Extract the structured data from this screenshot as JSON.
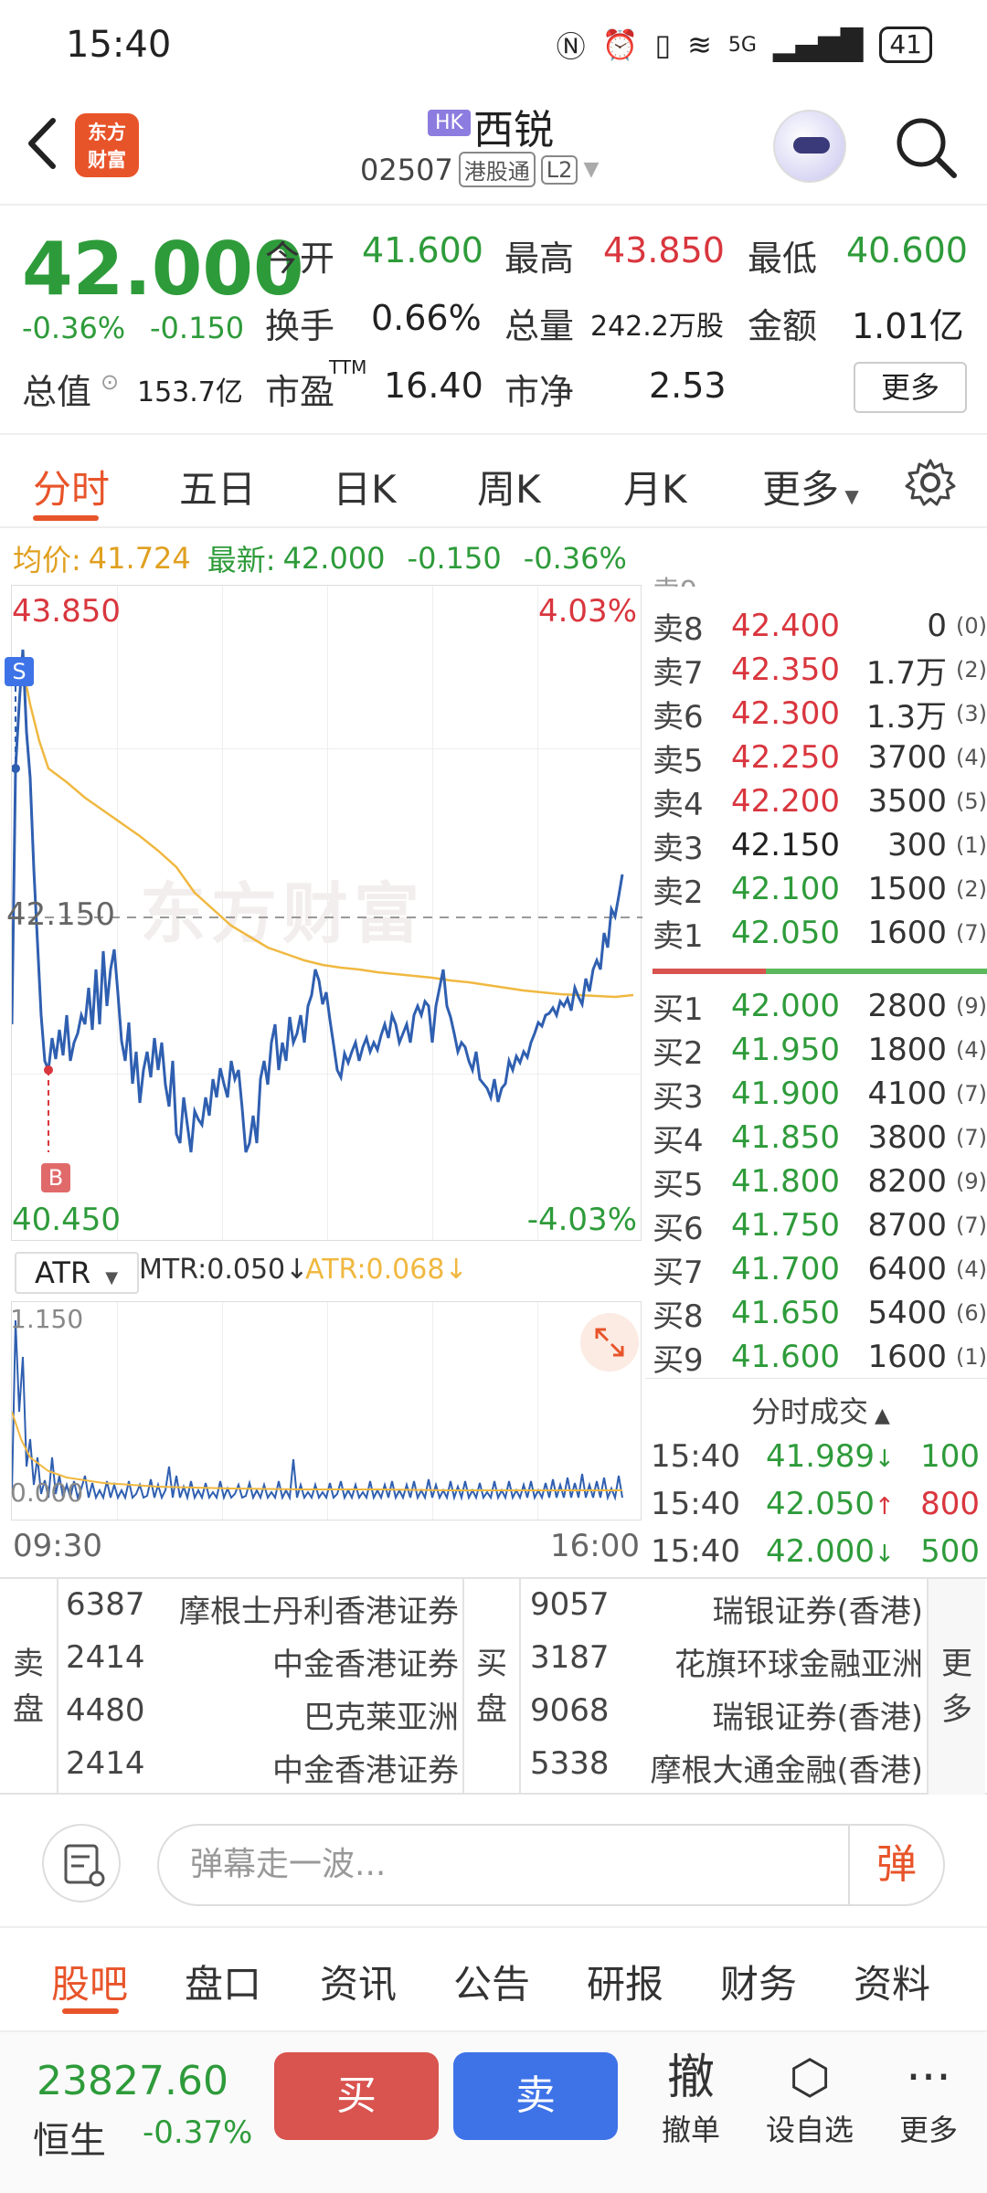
{
  "status_bar": {
    "time": "15:40",
    "battery": "41",
    "signal": "5G"
  },
  "header": {
    "logo_text": "东方\n财富",
    "market_badge": "HK",
    "stock_name": "西锐",
    "stock_code": "02507",
    "connect_tag": "港股通",
    "level_tag": "L2"
  },
  "quote": {
    "price": "42.000",
    "change_pct": "-0.36%",
    "change_amt": "-0.150",
    "open_label": "今开",
    "open": "41.600",
    "high_label": "最高",
    "high": "43.850",
    "low_label": "最低",
    "low": "40.600",
    "turnover_label": "换手",
    "turnover": "0.66%",
    "volume_label": "总量",
    "volume": "242.2万股",
    "amount_label": "金额",
    "amount": "1.01亿",
    "mktcap_label": "总值",
    "mktcap": "153.7亿",
    "pe_label": "市盈",
    "pe_sup": "TTM",
    "pe": "16.40",
    "pb_label": "市净",
    "pb": "2.53",
    "more_label": "更多"
  },
  "tabs": [
    "分时",
    "五日",
    "日K",
    "周K",
    "月K",
    "更多"
  ],
  "avg_line": {
    "avg_label": "均价:",
    "avg": "41.724",
    "latest_label": "最新:",
    "latest": "42.000",
    "chg": "-0.150",
    "pct": "-0.36%"
  },
  "chart_labels": {
    "top_price": "43.850",
    "top_pct": "4.03%",
    "bottom_price": "40.450",
    "bottom_pct": "-4.03%",
    "ref_price": "42.150",
    "sell_marker": "S",
    "buy_marker": "B",
    "watermark": "东方财富"
  },
  "order_book": {
    "asks": [
      {
        "label": "卖8",
        "price": "42.400",
        "vol": "0",
        "cnt": "(0)"
      },
      {
        "label": "卖7",
        "price": "42.350",
        "vol": "1.7万",
        "cnt": "(2)"
      },
      {
        "label": "卖6",
        "price": "42.300",
        "vol": "1.3万",
        "cnt": "(3)"
      },
      {
        "label": "卖5",
        "price": "42.250",
        "vol": "3700",
        "cnt": "(4)"
      },
      {
        "label": "卖4",
        "price": "42.200",
        "vol": "3500",
        "cnt": "(5)"
      },
      {
        "label": "卖3",
        "price": "42.150",
        "vol": "300",
        "cnt": "(1)"
      },
      {
        "label": "卖2",
        "price": "42.100",
        "vol": "1500",
        "cnt": "(2)"
      },
      {
        "label": "卖1",
        "price": "42.050",
        "vol": "1600",
        "cnt": "(7)"
      }
    ],
    "bids": [
      {
        "label": "买1",
        "price": "42.000",
        "vol": "2800",
        "cnt": "(9)"
      },
      {
        "label": "买2",
        "price": "41.950",
        "vol": "1800",
        "cnt": "(4)"
      },
      {
        "label": "买3",
        "price": "41.900",
        "vol": "4100",
        "cnt": "(7)"
      },
      {
        "label": "买4",
        "price": "41.850",
        "vol": "3800",
        "cnt": "(7)"
      },
      {
        "label": "买5",
        "price": "41.800",
        "vol": "8200",
        "cnt": "(9)"
      },
      {
        "label": "买6",
        "price": "41.750",
        "vol": "8700",
        "cnt": "(7)"
      },
      {
        "label": "买7",
        "price": "41.700",
        "vol": "6400",
        "cnt": "(4)"
      },
      {
        "label": "买8",
        "price": "41.650",
        "vol": "5400",
        "cnt": "(6)"
      },
      {
        "label": "买9",
        "price": "41.600",
        "vol": "1600",
        "cnt": "(1)"
      }
    ]
  },
  "atr": {
    "selector": "ATR",
    "mtr": "MTR:0.050",
    "atr": "ATR:0.068",
    "top_val": "1.150",
    "bottom_val": "0.000"
  },
  "time_axis": {
    "start": "09:30",
    "end": "16:00"
  },
  "trades": {
    "title": "分时成交",
    "rows": [
      {
        "time": "15:40",
        "price": "41.989",
        "dir": "↓",
        "vol": "100"
      },
      {
        "time": "15:40",
        "price": "42.050",
        "dir": "↑",
        "vol": "800"
      },
      {
        "time": "15:40",
        "price": "42.000",
        "dir": "↓",
        "vol": "500"
      }
    ]
  },
  "brokers": {
    "sell_label": "卖\n盘",
    "buy_label": "买\n盘",
    "more_label": "更\n多",
    "sell": [
      {
        "id": "6387",
        "name": "摩根士丹利香港证券"
      },
      {
        "id": "2414",
        "name": "中金香港证券"
      },
      {
        "id": "4480",
        "name": "巴克莱亚洲"
      },
      {
        "id": "2414",
        "name": "中金香港证券"
      }
    ],
    "buy": [
      {
        "id": "9057",
        "name": "瑞银证券(香港)"
      },
      {
        "id": "3187",
        "name": "花旗环球金融亚洲"
      },
      {
        "id": "9068",
        "name": "瑞银证券(香港)"
      },
      {
        "id": "5338",
        "name": "摩根大通金融(香港)"
      }
    ]
  },
  "comment": {
    "placeholder": "弹幕走一波...",
    "button": "弹"
  },
  "bottom_tabs": [
    "股吧",
    "盘口",
    "资讯",
    "公告",
    "研报",
    "财务",
    "资料"
  ],
  "bottom_bar": {
    "index_value": "23827.60",
    "index_name": "恒生",
    "index_change": "-0.37%",
    "buy": "买",
    "sell": "卖",
    "cancel_icon": "撤",
    "cancel": "撤单",
    "watchlist": "设自选",
    "more": "更多"
  },
  "colors": {
    "up": "#d9363e",
    "down": "#2e9b3a",
    "accent": "#e8542a",
    "price_line": "#2f5fb0",
    "avg_line": "#f0b840"
  }
}
